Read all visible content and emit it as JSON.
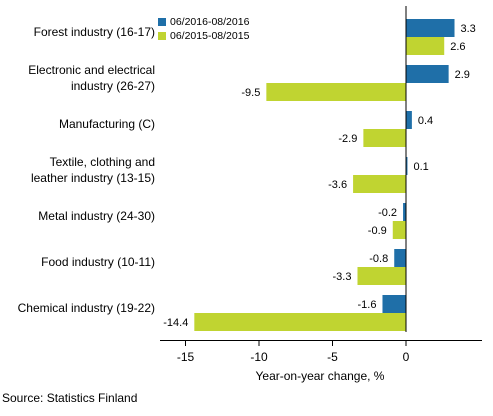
{
  "chart_data": {
    "type": "bar",
    "orientation": "horizontal",
    "title": "",
    "xlabel": "Year-on-year change, %",
    "ylabel": "",
    "xlim": [
      -17,
      4
    ],
    "xticks": [
      -15,
      -10,
      -5,
      0
    ],
    "tick_labels": [
      "-15",
      "-10",
      "-5",
      "0"
    ],
    "grid": false,
    "legend_position": "top-right",
    "categories": [
      "Forest industry (16-17)",
      "Electronic and electrical industry (26-27)",
      "Manufacturing (C)",
      "Textile, clothing and leather industry (13-15)",
      "Metal industry (24-30)",
      "Food industry (10-11)",
      "Chemical industry (19-22)"
    ],
    "category_lines": [
      [
        "Forest industry (16-17)"
      ],
      [
        "Electronic and electrical",
        "industry (26-27)"
      ],
      [
        "Manufacturing (C)"
      ],
      [
        "Textile, clothing and",
        "leather industry (13-15)"
      ],
      [
        "Metal industry (24-30)"
      ],
      [
        "Food industry (10-11)"
      ],
      [
        "Chemical industry (19-22)"
      ]
    ],
    "series": [
      {
        "name": "06/2016-08/2016",
        "color": "#1f6fa8",
        "values": [
          3.3,
          2.9,
          0.4,
          0.1,
          -0.2,
          -0.8,
          -1.6
        ],
        "labels": [
          "3.3",
          "2.9",
          "0.4",
          "0.1",
          "-0.2",
          "-0.8",
          "-1.6"
        ]
      },
      {
        "name": "06/2015-08/2015",
        "color": "#c0d431",
        "values": [
          2.6,
          -9.5,
          -2.9,
          -3.6,
          -0.9,
          -3.3,
          -14.4
        ],
        "labels": [
          "2.6",
          "-9.5",
          "-2.9",
          "-3.6",
          "-0.9",
          "-3.3",
          "-14.4"
        ]
      }
    ]
  },
  "source": "Source: Statistics Finland"
}
